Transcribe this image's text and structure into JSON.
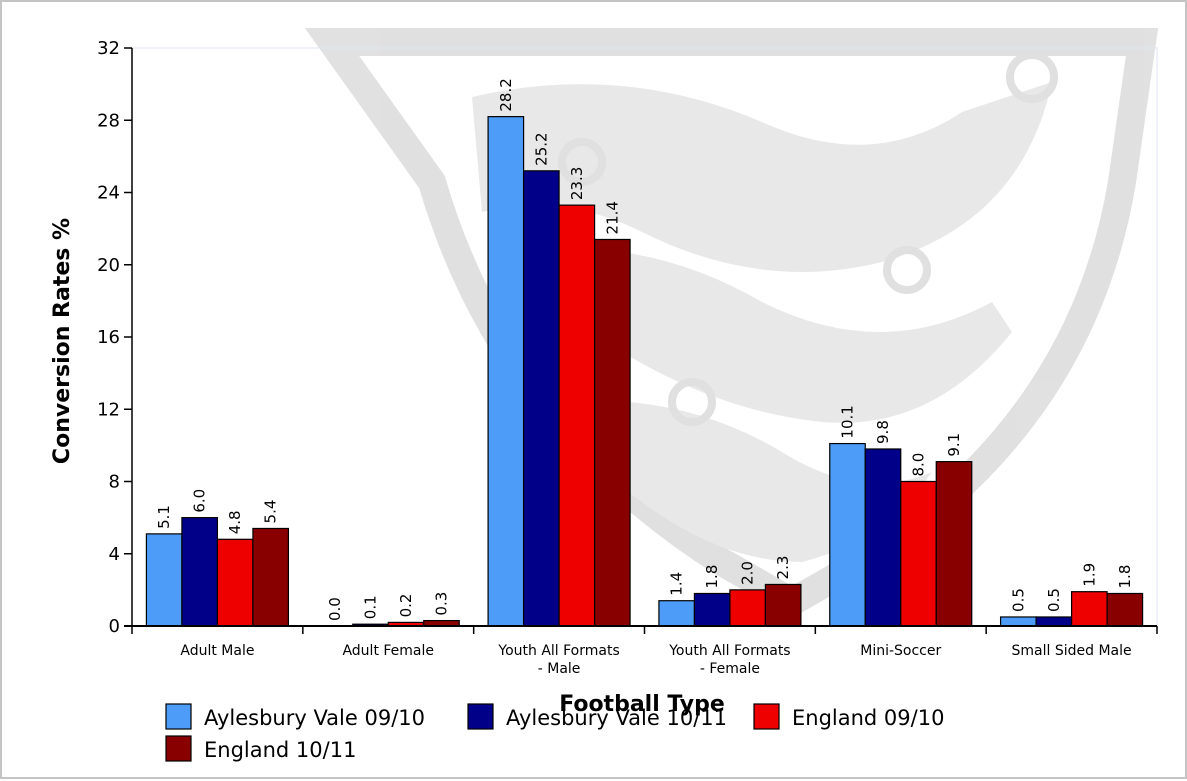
{
  "chart_data": {
    "type": "bar",
    "title": "",
    "xlabel": "Football Type",
    "ylabel": "Conversion Rates %",
    "ylim": [
      0,
      32
    ],
    "yticks": [
      "0",
      "4",
      "8",
      "12",
      "16",
      "20",
      "24",
      "28",
      "32"
    ],
    "categories": [
      [
        "Adult Male"
      ],
      [
        "Adult Female"
      ],
      [
        "Youth All Formats",
        "- Male"
      ],
      [
        "Youth All Formats",
        "- Female"
      ],
      [
        "Mini-Soccer"
      ],
      [
        "Small Sided Male"
      ]
    ],
    "series": [
      {
        "name": "Aylesbury Vale 09/10",
        "color": "#4d9cf7",
        "values": [
          5.1,
          0.0,
          28.2,
          1.4,
          10.1,
          0.5
        ],
        "labels": [
          "5.1",
          "0.0",
          "28.2",
          "1.4",
          "10.1",
          "0.5"
        ]
      },
      {
        "name": "Aylesbury Vale 10/11",
        "color": "#000088",
        "values": [
          6.0,
          0.1,
          25.2,
          1.8,
          9.8,
          0.5
        ],
        "labels": [
          "6.0",
          "0.1",
          "25.2",
          "1.8",
          "9.8",
          "0.5"
        ]
      },
      {
        "name": "England 09/10",
        "color": "#ee0000",
        "values": [
          4.8,
          0.2,
          23.3,
          2.0,
          8.0,
          1.9
        ],
        "labels": [
          "4.8",
          "0.2",
          "23.3",
          "2.0",
          "8.0",
          "1.9"
        ]
      },
      {
        "name": "England 10/11",
        "color": "#880000",
        "values": [
          5.4,
          0.3,
          21.4,
          2.3,
          9.1,
          1.8
        ],
        "labels": [
          "5.4",
          "0.3",
          "21.4",
          "2.3",
          "9.1",
          "1.8"
        ]
      }
    ],
    "grid": false,
    "legend": "bottom-left"
  }
}
